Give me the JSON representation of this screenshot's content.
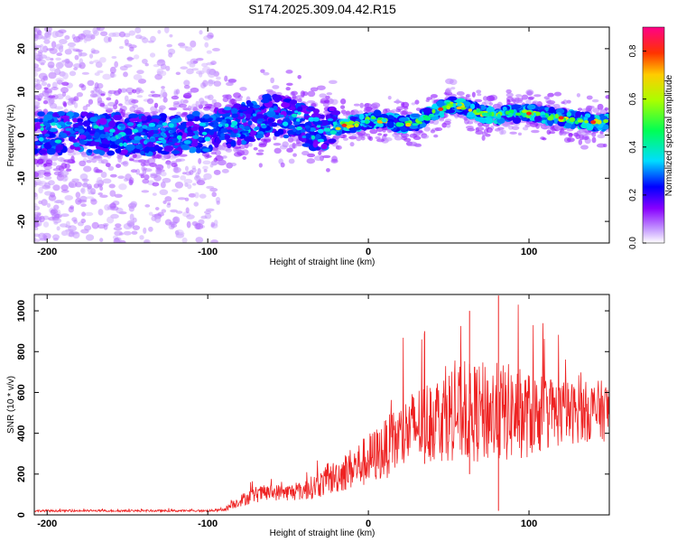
{
  "title": "S174.2025.309.04.42.R15",
  "chart_data": [
    {
      "type": "heatmap",
      "name": "spectrogram",
      "xlabel": "Height of straight line (km)",
      "ylabel": "Frequency (Hz)",
      "xlim": [
        -208,
        150
      ],
      "ylim": [
        -25,
        25
      ],
      "xticks": [
        -200,
        -100,
        0,
        100
      ],
      "yticks": [
        -20,
        -10,
        0,
        10,
        20
      ],
      "colorbar": {
        "label": "Normalized spectral amplitude",
        "range": [
          0.0,
          0.9
        ],
        "ticks": [
          "0.0",
          "0.2",
          "0.4",
          "0.6",
          "0.8"
        ]
      },
      "ridge": {
        "description_points_x_km": [
          -200,
          -180,
          -160,
          -140,
          -120,
          -100,
          -90,
          -80,
          -70,
          -60,
          -50,
          -40,
          -30,
          -20,
          -10,
          0,
          10,
          20,
          30,
          40,
          50,
          60,
          70,
          80,
          90,
          100,
          110,
          120,
          130,
          140,
          150
        ],
        "frequency_hz": [
          0.5,
          0.5,
          0.3,
          0.0,
          0.3,
          0.8,
          1.5,
          2.5,
          3.5,
          5.0,
          4.0,
          2.0,
          1.0,
          2.0,
          2.5,
          3.5,
          3.5,
          2.5,
          3.0,
          5.0,
          7.0,
          6.5,
          5.0,
          4.5,
          5.0,
          5.0,
          4.5,
          4.0,
          3.5,
          3.0,
          3.0
        ]
      }
    },
    {
      "type": "line",
      "name": "snr",
      "xlabel": "Height of straight line (km)",
      "ylabel": "SNR (10 * v/v)",
      "xlim": [
        -208,
        150
      ],
      "ylim": [
        0,
        1080
      ],
      "xticks": [
        -200,
        -100,
        0,
        100
      ],
      "yticks": [
        0,
        200,
        400,
        600,
        800,
        1000
      ],
      "color": "#ee2222",
      "envelope": {
        "x": [
          -208,
          -100,
          -90,
          -80,
          -70,
          -60,
          -50,
          -40,
          -30,
          -20,
          -10,
          0,
          10,
          20,
          30,
          40,
          50,
          60,
          70,
          80,
          90,
          100,
          110,
          120,
          130,
          140,
          150
        ],
        "base": [
          20,
          20,
          25,
          70,
          100,
          110,
          110,
          120,
          150,
          190,
          230,
          270,
          320,
          380,
          440,
          470,
          490,
          500,
          500,
          500,
          500,
          490,
          500,
          500,
          500,
          510,
          510
        ],
        "amp": [
          10,
          10,
          15,
          60,
          80,
          80,
          80,
          100,
          130,
          170,
          210,
          260,
          290,
          350,
          380,
          420,
          450,
          480,
          500,
          500,
          480,
          420,
          380,
          330,
          300,
          300,
          300
        ]
      }
    }
  ]
}
